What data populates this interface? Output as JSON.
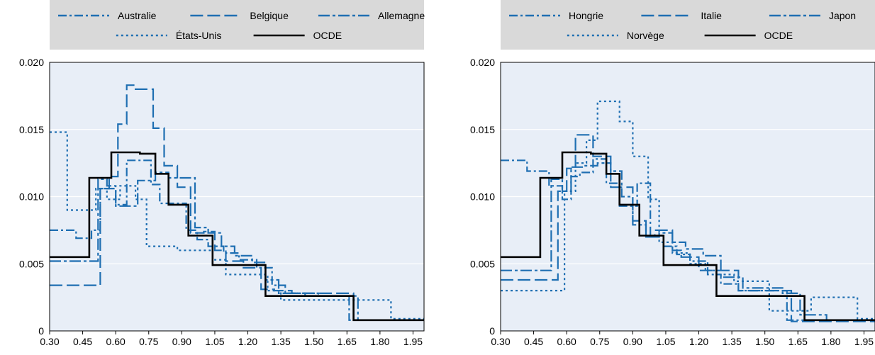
{
  "chart_data": [
    {
      "type": "line",
      "step": "post",
      "x_ticks": [
        "0.30",
        "0.45",
        "0.60",
        "0.75",
        "0.90",
        "1.05",
        "1.20",
        "1.35",
        "1.50",
        "1.65",
        "1.80",
        "1.95"
      ],
      "y_ticks": [
        "0",
        "0.005",
        "0.010",
        "0.015",
        "0.020"
      ],
      "xlim": [
        0.3,
        2.0
      ],
      "ylim": [
        0,
        0.02
      ],
      "grid": "horizontal",
      "legend_position": "top",
      "series": [
        {
          "name": "Australie",
          "style": "dash-dot",
          "color": "#1f6fb2",
          "x": [
            0.3,
            0.38,
            0.42,
            0.49,
            0.53,
            0.6,
            0.65,
            0.7,
            0.76,
            0.8,
            0.86,
            0.92,
            0.97,
            1.02,
            1.09,
            1.16,
            1.24,
            1.31,
            1.37,
            1.46,
            1.56,
            1.66,
            1.73,
            1.82,
            2.0
          ],
          "y": [
            0.0075,
            0.0075,
            0.0069,
            0.0075,
            0.0106,
            0.0094,
            0.0127,
            0.0127,
            0.0109,
            0.0095,
            0.0095,
            0.0075,
            0.0068,
            0.0063,
            0.0058,
            0.0053,
            0.0047,
            0.0034,
            0.0028,
            0.0026,
            0.0026,
            0.0008,
            0.0008,
            0.0008,
            0.0008
          ]
        },
        {
          "name": "Belgique",
          "style": "dashed",
          "color": "#1f6fb2",
          "x": [
            0.3,
            0.38,
            0.46,
            0.53,
            0.57,
            0.61,
            0.65,
            0.69,
            0.73,
            0.77,
            0.82,
            0.88,
            0.94,
            1.0,
            1.05,
            1.1,
            1.18,
            1.26,
            1.32,
            1.4,
            1.5,
            1.6,
            1.68,
            1.78,
            1.9,
            2.0
          ],
          "y": [
            0.0034,
            0.0034,
            0.0034,
            0.0106,
            0.0115,
            0.0154,
            0.0183,
            0.018,
            0.018,
            0.0151,
            0.0123,
            0.0107,
            0.0073,
            0.0074,
            0.006,
            0.0052,
            0.0047,
            0.0031,
            0.003,
            0.0028,
            0.0028,
            0.0028,
            0.0008,
            0.0008,
            0.0008,
            0.0008
          ]
        },
        {
          "name": "Allemagne",
          "style": "dash-dot-long",
          "color": "#1f6fb2",
          "x": [
            0.3,
            0.4,
            0.48,
            0.52,
            0.56,
            0.6,
            0.64,
            0.7,
            0.74,
            0.78,
            0.84,
            0.9,
            0.96,
            1.02,
            1.08,
            1.14,
            1.22,
            1.28,
            1.34,
            1.42,
            1.52,
            1.62,
            1.7,
            1.8,
            2.0
          ],
          "y": [
            0.0052,
            0.0052,
            0.0052,
            0.0113,
            0.0108,
            0.0093,
            0.0093,
            0.0112,
            0.0112,
            0.0118,
            0.0114,
            0.0114,
            0.0077,
            0.0073,
            0.0063,
            0.0056,
            0.0051,
            0.0038,
            0.0028,
            0.0028,
            0.0026,
            0.0026,
            0.0008,
            0.0008,
            0.0008
          ]
        },
        {
          "name": "États-Unis",
          "style": "dotted",
          "color": "#1f6fb2",
          "x": [
            0.3,
            0.34,
            0.38,
            0.46,
            0.51,
            0.56,
            0.62,
            0.69,
            0.74,
            0.78,
            0.88,
            0.96,
            1.04,
            1.1,
            1.18,
            1.29,
            1.35,
            1.4,
            1.5,
            1.58,
            1.72,
            1.85,
            2.0
          ],
          "y": [
            0.0148,
            0.0148,
            0.009,
            0.009,
            0.0106,
            0.0098,
            0.0108,
            0.0098,
            0.0063,
            0.0063,
            0.006,
            0.006,
            0.0053,
            0.0042,
            0.0042,
            0.003,
            0.0023,
            0.0023,
            0.0023,
            0.0023,
            0.0023,
            0.0009,
            0.0009
          ]
        },
        {
          "name": "OCDE",
          "style": "solid",
          "color": "#000000",
          "x": [
            0.3,
            0.48,
            0.58,
            0.63,
            0.71,
            0.78,
            0.84,
            0.93,
            1.04,
            1.15,
            1.28,
            1.41,
            1.54,
            1.68,
            1.81,
            2.0
          ],
          "y": [
            0.0055,
            0.0114,
            0.0133,
            0.0133,
            0.0132,
            0.0117,
            0.0094,
            0.0071,
            0.0049,
            0.0049,
            0.0026,
            0.0026,
            0.0026,
            0.0008,
            0.0008,
            0.0008
          ]
        }
      ]
    },
    {
      "type": "line",
      "step": "post",
      "x_ticks": [
        "0.30",
        "0.45",
        "0.60",
        "0.75",
        "0.90",
        "1.05",
        "1.20",
        "1.35",
        "1.50",
        "1.65",
        "1.80",
        "1.95"
      ],
      "y_ticks": [
        "0",
        "0.005",
        "0.010",
        "0.015",
        "0.020"
      ],
      "xlim": [
        0.3,
        2.0
      ],
      "ylim": [
        0,
        0.02
      ],
      "grid": "horizontal",
      "legend_position": "top",
      "series": [
        {
          "name": "Hongrie",
          "style": "dash-dot",
          "color": "#1f6fb2",
          "x": [
            0.3,
            0.36,
            0.42,
            0.46,
            0.52,
            0.58,
            0.62,
            0.66,
            0.72,
            0.78,
            0.84,
            0.92,
            0.98,
            1.04,
            1.1,
            1.16,
            1.24,
            1.3,
            1.38,
            1.48,
            1.6,
            1.7,
            1.8,
            2.0
          ],
          "y": [
            0.0127,
            0.0127,
            0.0119,
            0.0119,
            0.0108,
            0.0098,
            0.0115,
            0.0118,
            0.0128,
            0.011,
            0.0093,
            0.011,
            0.0071,
            0.0063,
            0.0057,
            0.0052,
            0.0042,
            0.0035,
            0.003,
            0.003,
            0.0008,
            0.0008,
            0.0008,
            0.0008
          ]
        },
        {
          "name": "Italie",
          "style": "dashed",
          "color": "#1f6fb2",
          "x": [
            0.3,
            0.4,
            0.52,
            0.56,
            0.6,
            0.64,
            0.68,
            0.72,
            0.76,
            0.8,
            0.86,
            0.9,
            0.96,
            1.0,
            1.08,
            1.12,
            1.2,
            1.3,
            1.38,
            1.44,
            1.55,
            1.62,
            1.7,
            1.8,
            2.0
          ],
          "y": [
            0.0038,
            0.0038,
            0.0038,
            0.0104,
            0.0121,
            0.0146,
            0.0146,
            0.013,
            0.013,
            0.0107,
            0.0107,
            0.0082,
            0.007,
            0.0075,
            0.006,
            0.0055,
            0.0045,
            0.0045,
            0.003,
            0.003,
            0.003,
            0.0007,
            0.0007,
            0.0007,
            0.0007
          ]
        },
        {
          "name": "Japon",
          "style": "dash-dot-long",
          "color": "#1f6fb2",
          "x": [
            0.3,
            0.42,
            0.5,
            0.53,
            0.58,
            0.62,
            0.68,
            0.74,
            0.8,
            0.85,
            0.9,
            0.96,
            1.02,
            1.08,
            1.14,
            1.22,
            1.3,
            1.4,
            1.5,
            1.58,
            1.66,
            1.78,
            2.0
          ],
          "y": [
            0.0045,
            0.0045,
            0.0045,
            0.0113,
            0.0104,
            0.0122,
            0.0123,
            0.0125,
            0.0119,
            0.01,
            0.0079,
            0.007,
            0.0073,
            0.0066,
            0.0061,
            0.0056,
            0.004,
            0.0032,
            0.0032,
            0.0028,
            0.0012,
            0.0008,
            0.0008
          ]
        },
        {
          "name": "Norvège",
          "style": "dotted",
          "color": "#1f6fb2",
          "x": [
            0.3,
            0.44,
            0.55,
            0.59,
            0.64,
            0.69,
            0.74,
            0.79,
            0.84,
            0.9,
            0.97,
            1.02,
            1.08,
            1.16,
            1.23,
            1.28,
            1.36,
            1.44,
            1.52,
            1.62,
            1.71,
            1.8,
            1.92,
            2.0
          ],
          "y": [
            0.003,
            0.003,
            0.003,
            0.0104,
            0.0125,
            0.0142,
            0.0171,
            0.0171,
            0.0156,
            0.013,
            0.0098,
            0.0066,
            0.0058,
            0.005,
            0.0045,
            0.0042,
            0.0037,
            0.0037,
            0.0015,
            0.0015,
            0.0025,
            0.0025,
            0.0009,
            0.0009
          ]
        },
        {
          "name": "OCDE",
          "style": "solid",
          "color": "#000000",
          "x": [
            0.3,
            0.48,
            0.58,
            0.63,
            0.71,
            0.78,
            0.84,
            0.93,
            1.04,
            1.15,
            1.28,
            1.41,
            1.54,
            1.68,
            1.81,
            2.0
          ],
          "y": [
            0.0055,
            0.0114,
            0.0133,
            0.0133,
            0.0132,
            0.0117,
            0.0094,
            0.0071,
            0.0049,
            0.0049,
            0.0026,
            0.0026,
            0.0026,
            0.0008,
            0.0008,
            0.0008
          ]
        }
      ]
    }
  ]
}
